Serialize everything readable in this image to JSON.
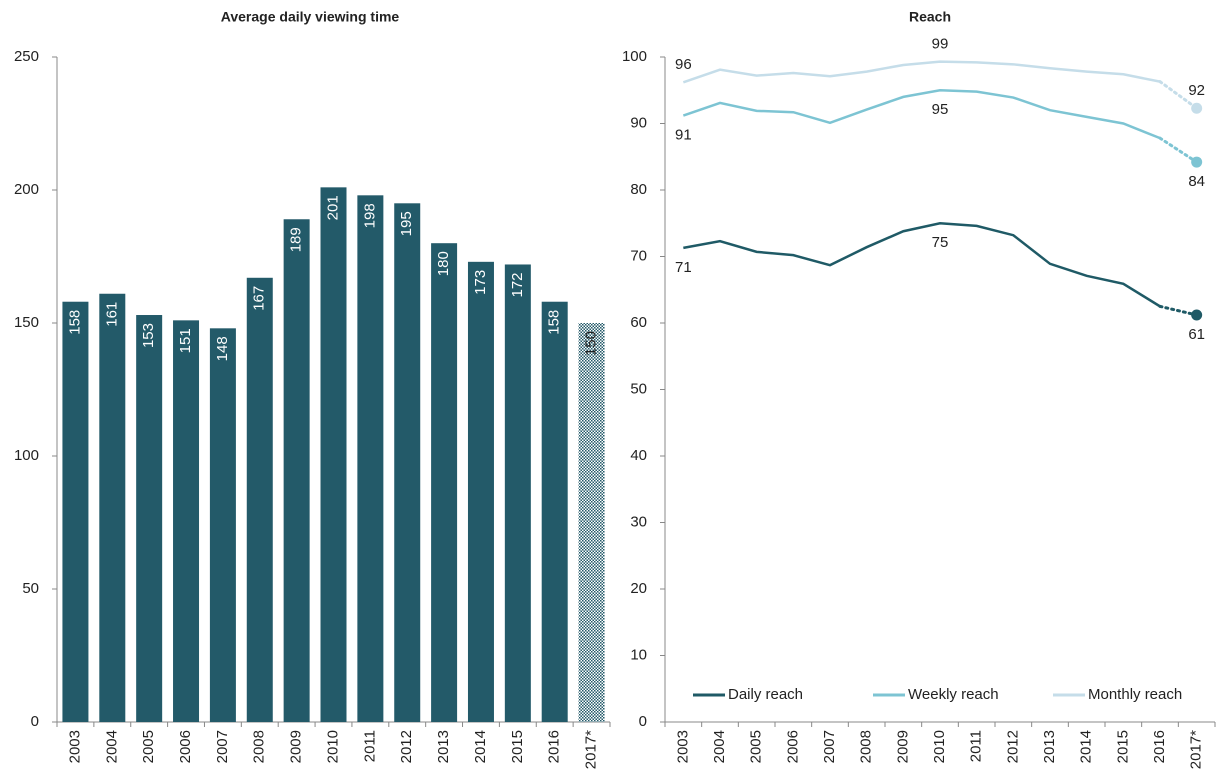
{
  "chart_data": [
    {
      "type": "bar",
      "title": "Average daily viewing time",
      "categories": [
        "2003",
        "2004",
        "2005",
        "2006",
        "2007",
        "2008",
        "2009",
        "2010",
        "2011",
        "2012",
        "2013",
        "2014",
        "2015",
        "2016",
        "2017*"
      ],
      "values": [
        158,
        161,
        153,
        151,
        148,
        167,
        189,
        201,
        198,
        195,
        180,
        173,
        172,
        158,
        150
      ],
      "color": "#235a69",
      "ylim": [
        0,
        250
      ],
      "yticks": [
        0,
        50,
        100,
        150,
        200,
        250
      ]
    },
    {
      "type": "line",
      "title": "Reach",
      "categories": [
        "2003",
        "2004",
        "2005",
        "2006",
        "2007",
        "2008",
        "2009",
        "2010",
        "2011",
        "2012",
        "2013",
        "2014",
        "2015",
        "2016",
        "2017*"
      ],
      "series": [
        {
          "name": "Daily reach",
          "color": "#1f5a66",
          "values": [
            71.3,
            72.3,
            70.7,
            70.2,
            68.7,
            71.4,
            73.8,
            75,
            74.6,
            73.2,
            68.9,
            67.1,
            65.9,
            62.5,
            61.2
          ],
          "value_labels": [
            "71",
            null,
            null,
            null,
            null,
            null,
            null,
            "75",
            null,
            null,
            null,
            null,
            null,
            null,
            "61"
          ]
        },
        {
          "name": "Weekly reach",
          "color": "#7dc4d3",
          "values": [
            91.2,
            93.1,
            91.9,
            91.7,
            90.1,
            92.1,
            94,
            95,
            94.8,
            93.9,
            92,
            91,
            90,
            87.8,
            84.2
          ],
          "value_labels": [
            "91",
            null,
            null,
            null,
            null,
            null,
            null,
            "95",
            null,
            null,
            null,
            null,
            null,
            null,
            "84"
          ]
        },
        {
          "name": "Monthly reach",
          "color": "#c5dde9",
          "values": [
            96.2,
            98.1,
            97.2,
            97.6,
            97.1,
            97.8,
            98.8,
            99.3,
            99.2,
            98.9,
            98.3,
            97.8,
            97.4,
            96.3,
            92.3
          ],
          "value_labels": [
            "96",
            null,
            null,
            null,
            null,
            null,
            null,
            "99",
            null,
            null,
            null,
            null,
            null,
            null,
            "92"
          ]
        }
      ],
      "ylim": [
        0,
        100
      ],
      "yticks": [
        0,
        10,
        20,
        30,
        40,
        50,
        60,
        70,
        80,
        90,
        100
      ],
      "legend": "bottom"
    }
  ]
}
